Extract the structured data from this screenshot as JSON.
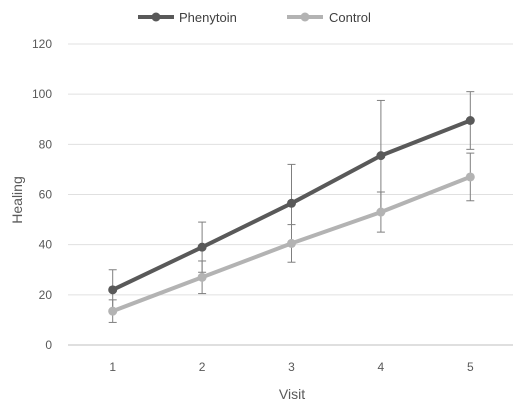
{
  "chart_data": {
    "type": "line",
    "xlabel": "Visit",
    "ylabel": "Healing",
    "categories": [
      "1",
      "2",
      "3",
      "4",
      "5"
    ],
    "ylim": [
      0,
      120
    ],
    "yticks": [
      0,
      20,
      40,
      60,
      80,
      100,
      120
    ],
    "grid": true,
    "legend_position": "top-left",
    "series": [
      {
        "name": "Phenytoin",
        "color": "#595959",
        "values": [
          22,
          39,
          56.5,
          75.5,
          89.5
        ],
        "error": [
          8,
          10,
          15.5,
          22,
          11.5
        ]
      },
      {
        "name": "Control",
        "color": "#b3b3b3",
        "values": [
          13.5,
          27,
          40.5,
          53,
          67
        ],
        "error": [
          4.5,
          6.5,
          7.5,
          8,
          9.5
        ]
      }
    ]
  }
}
